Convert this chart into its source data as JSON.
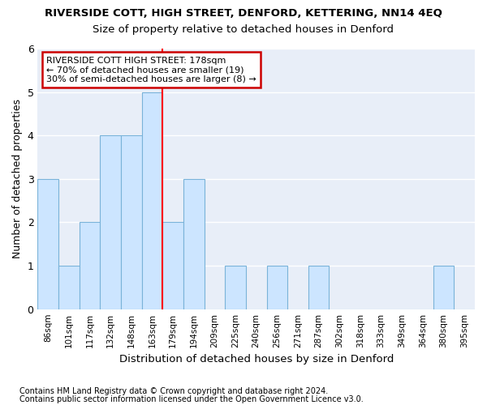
{
  "title": "RIVERSIDE COTT, HIGH STREET, DENFORD, KETTERING, NN14 4EQ",
  "subtitle": "Size of property relative to detached houses in Denford",
  "xlabel": "Distribution of detached houses by size in Denford",
  "ylabel": "Number of detached properties",
  "footer1": "Contains HM Land Registry data © Crown copyright and database right 2024.",
  "footer2": "Contains public sector information licensed under the Open Government Licence v3.0.",
  "categories": [
    "86sqm",
    "101sqm",
    "117sqm",
    "132sqm",
    "148sqm",
    "163sqm",
    "179sqm",
    "194sqm",
    "209sqm",
    "225sqm",
    "240sqm",
    "256sqm",
    "271sqm",
    "287sqm",
    "302sqm",
    "318sqm",
    "333sqm",
    "349sqm",
    "364sqm",
    "380sqm",
    "395sqm"
  ],
  "values": [
    3,
    1,
    2,
    4,
    4,
    5,
    2,
    3,
    0,
    1,
    0,
    1,
    0,
    1,
    0,
    0,
    0,
    0,
    0,
    1,
    0
  ],
  "bar_color": "#cce5ff",
  "bar_edgecolor": "#7ab3d9",
  "red_line_x": 6.5,
  "annotation_line1": "RIVERSIDE COTT HIGH STREET: 178sqm",
  "annotation_line2": "← 70% of detached houses are smaller (19)",
  "annotation_line3": "30% of semi-detached houses are larger (8) →",
  "ylim": [
    0,
    6
  ],
  "yticks": [
    0,
    1,
    2,
    3,
    4,
    5,
    6
  ],
  "bg_color": "#ffffff",
  "plot_bg_color": "#e8eef8",
  "grid_color": "#ffffff",
  "annotation_box_facecolor": "#ffffff",
  "annotation_box_edgecolor": "#cc0000"
}
